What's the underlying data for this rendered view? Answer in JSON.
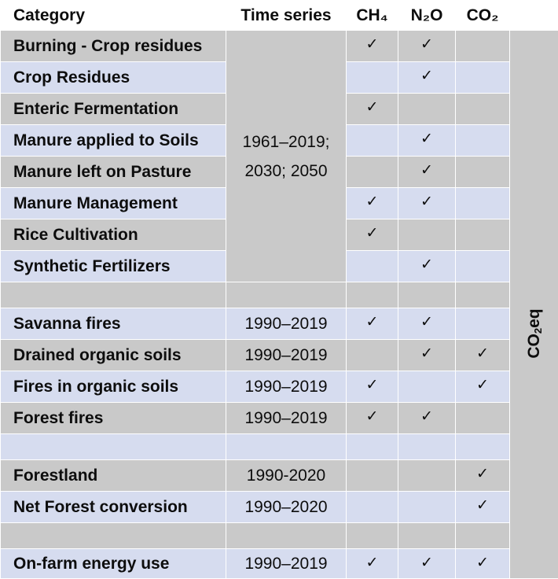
{
  "header": {
    "category": "Category",
    "time_series": "Time series",
    "ch4": "CH₄",
    "n2o": "N₂O",
    "co2": "CO₂"
  },
  "merged_time_series": "1961–2019;\n2030; 2050",
  "co2eq_label": {
    "prefix": "CO",
    "sub": "2",
    "suffix": "eq"
  },
  "check_glyph": "✓",
  "rows": [
    {
      "category": "Burning - Crop residues",
      "time": "",
      "ch4": true,
      "n2o": true,
      "co2": false
    },
    {
      "category": "Crop Residues",
      "time": "",
      "ch4": false,
      "n2o": true,
      "co2": false
    },
    {
      "category": "Enteric Fermentation",
      "time": "",
      "ch4": true,
      "n2o": false,
      "co2": false
    },
    {
      "category": "Manure applied to Soils",
      "time": "",
      "ch4": false,
      "n2o": true,
      "co2": false
    },
    {
      "category": "Manure left on Pasture",
      "time": "",
      "ch4": false,
      "n2o": true,
      "co2": false
    },
    {
      "category": "Manure Management",
      "time": "",
      "ch4": true,
      "n2o": true,
      "co2": false
    },
    {
      "category": "Rice Cultivation",
      "time": "",
      "ch4": true,
      "n2o": false,
      "co2": false
    },
    {
      "category": "Synthetic Fertilizers",
      "time": "",
      "ch4": false,
      "n2o": true,
      "co2": false
    },
    {
      "category": "",
      "time": "",
      "ch4": false,
      "n2o": false,
      "co2": false,
      "blank": true
    },
    {
      "category": "Savanna fires",
      "time": "1990–2019",
      "ch4": true,
      "n2o": true,
      "co2": false
    },
    {
      "category": "Drained organic soils",
      "time": "1990–2019",
      "ch4": false,
      "n2o": true,
      "co2": true
    },
    {
      "category": "Fires in organic soils",
      "time": "1990–2019",
      "ch4": true,
      "n2o": false,
      "co2": true
    },
    {
      "category": "Forest fires",
      "time": "1990–2019",
      "ch4": true,
      "n2o": true,
      "co2": false
    },
    {
      "category": "",
      "time": "",
      "ch4": false,
      "n2o": false,
      "co2": false,
      "blank": true
    },
    {
      "category": "Forestland",
      "time": "1990-2020",
      "ch4": false,
      "n2o": false,
      "co2": true
    },
    {
      "category": "Net Forest conversion",
      "time": "1990–2020",
      "ch4": false,
      "n2o": false,
      "co2": true
    },
    {
      "category": "",
      "time": "",
      "ch4": false,
      "n2o": false,
      "co2": false,
      "blank": true
    },
    {
      "category": "On-farm energy use",
      "time": "1990–2019",
      "ch4": true,
      "n2o": true,
      "co2": true
    }
  ]
}
